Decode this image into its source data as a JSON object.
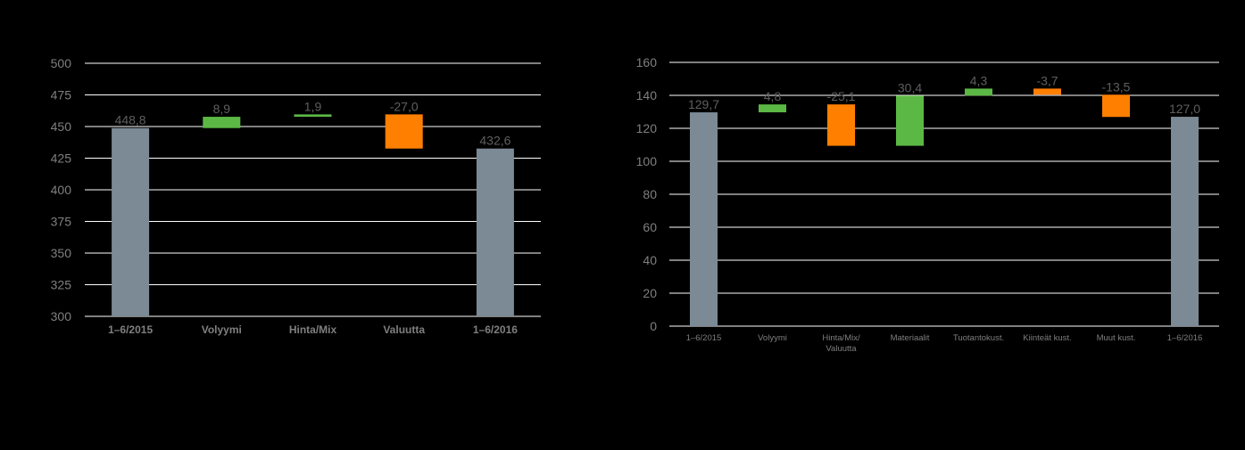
{
  "chart_data": [
    {
      "type": "bar",
      "subtype": "waterfall",
      "title": "",
      "xlabel": "",
      "ylabel": "",
      "ylim": [
        300,
        500
      ],
      "yticks": [
        "300",
        "325",
        "350",
        "375",
        "400",
        "425",
        "450",
        "475",
        "500"
      ],
      "grid": true,
      "categories": [
        "1–6/2015",
        "Volyymi",
        "Hinta/Mix",
        "Valuutta",
        "1–6/2016"
      ],
      "values": [
        448.8,
        8.9,
        1.9,
        -27.0,
        432.6
      ],
      "value_labels": [
        "448,8",
        "8,9",
        "1,9",
        "-27,0",
        "432,6"
      ],
      "kinds": [
        "total",
        "delta",
        "delta",
        "delta",
        "total"
      ],
      "colors": {
        "total": "#7b8a95",
        "increase": "#5cb845",
        "decrease": "#ff7f00"
      }
    },
    {
      "type": "bar",
      "subtype": "waterfall",
      "title": "",
      "xlabel": "",
      "ylabel": "",
      "ylim": [
        0,
        160
      ],
      "yticks": [
        "0",
        "20",
        "40",
        "60",
        "80",
        "100",
        "120",
        "140",
        "160"
      ],
      "grid": true,
      "categories": [
        "1–6/2015",
        "Volyymi",
        "Hinta/Mix/\nValuutta",
        "Materiaalit",
        "Tuotantokust.",
        "Kiinteät kust.",
        "Muut kust.",
        "1–6/2016"
      ],
      "values": [
        129.7,
        4.8,
        -25.1,
        30.4,
        4.3,
        -3.7,
        -13.5,
        127.0
      ],
      "value_labels": [
        "129,7",
        "4,8",
        "-25,1",
        "30,4",
        "4,3",
        "-3,7",
        "-13,5",
        "127,0"
      ],
      "kinds": [
        "total",
        "delta",
        "delta",
        "delta",
        "delta",
        "delta",
        "delta",
        "total"
      ],
      "colors": {
        "total": "#7b8a95",
        "increase": "#5cb845",
        "decrease": "#ff7f00"
      }
    }
  ]
}
